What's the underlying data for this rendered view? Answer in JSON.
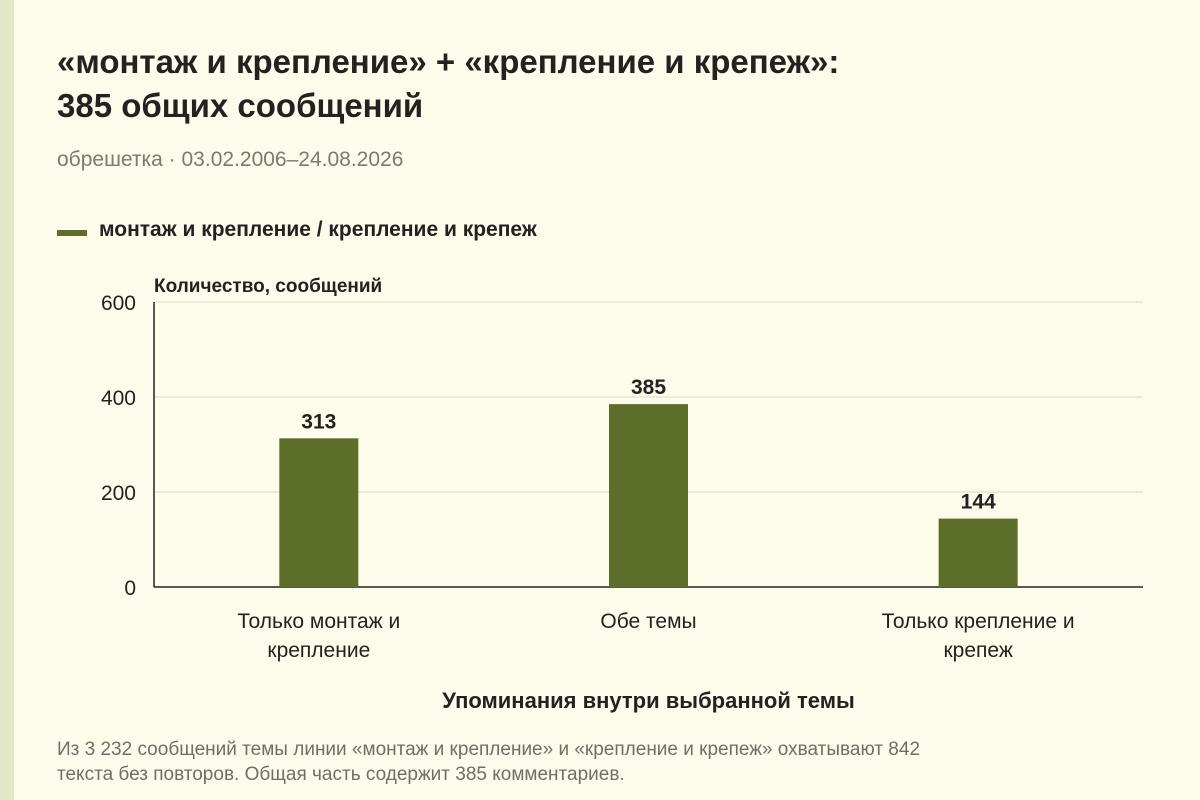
{
  "header": {
    "title_line1": "«монтаж и крепление» + «крепление и крепеж»:",
    "title_line2": "385 общих сообщений",
    "subtitle": "обрешетка · 03.02.2006–24.08.2026"
  },
  "legend": {
    "label": "монтаж и крепление / крепление и крепеж"
  },
  "footnote": {
    "line1": "Из 3 232 сообщений темы линии «монтаж и крепление» и «крепление и крепеж» охватывают 842",
    "line2": "текста без повторов. Общая часть содержит 385 комментариев."
  },
  "colors": {
    "bar": "#5c6e29",
    "background": "#fdfbea",
    "grid": "#d8d8cc"
  },
  "chart_data": {
    "type": "bar",
    "ylabel": "Количество, сообщений",
    "xlabel": "Упоминания внутри выбранной темы",
    "ylim": [
      0,
      600
    ],
    "yticks": [
      0,
      200,
      400,
      600
    ],
    "grid": true,
    "legend_position": "top-left",
    "categories": [
      [
        "Только монтаж и",
        "крепление"
      ],
      [
        "Обе темы"
      ],
      [
        "Только крепление и",
        "крепеж"
      ]
    ],
    "series": [
      {
        "name": "монтаж и крепление / крепление и крепеж",
        "values": [
          313,
          385,
          144
        ]
      }
    ]
  }
}
